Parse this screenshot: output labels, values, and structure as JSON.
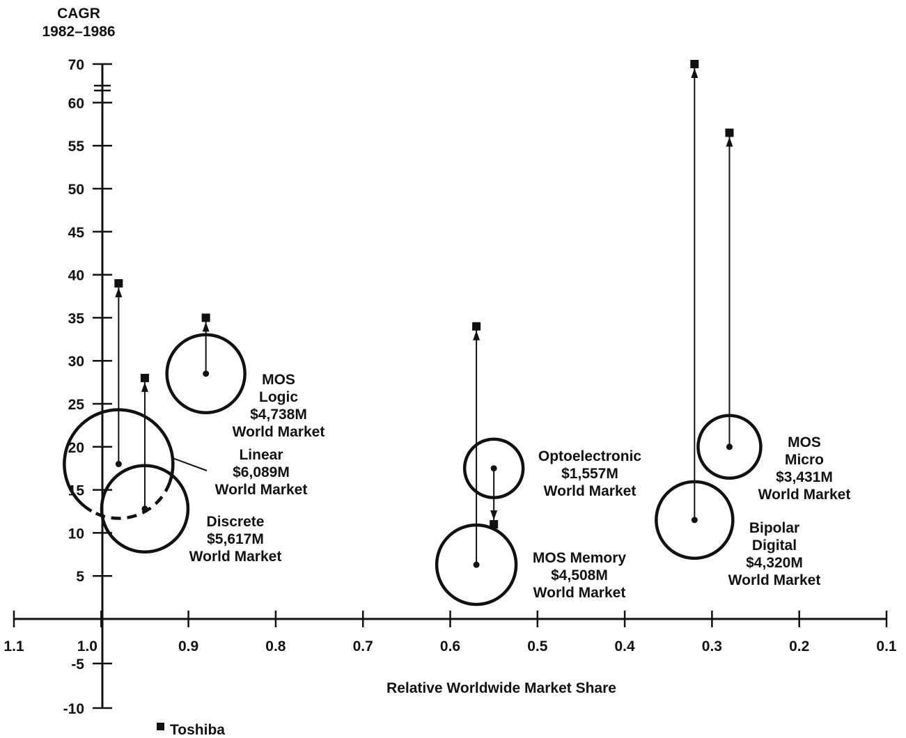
{
  "chart_data": {
    "type": "scatter",
    "title": "",
    "y_axis_title": [
      "CAGR",
      "1982–1986"
    ],
    "xlabel": "Relative Worldwide Market Share",
    "x_ticks": [
      "1.1",
      "1.0",
      "0.9",
      "0.8",
      "0.7",
      "0.6",
      "0.5",
      "0.4",
      "0.3",
      "0.2",
      "0.1"
    ],
    "x_tick_values": [
      1.1,
      1.0,
      0.9,
      0.8,
      0.7,
      0.6,
      0.5,
      0.4,
      0.3,
      0.2,
      0.1
    ],
    "xlim": [
      1.1,
      0.1
    ],
    "x_reversed": true,
    "y_ticks": [
      "70",
      "60",
      "55",
      "50",
      "45",
      "40",
      "35",
      "30",
      "25",
      "20",
      "15",
      "10",
      "5",
      "-5",
      "-10"
    ],
    "y_tick_values": [
      70,
      60,
      55,
      50,
      45,
      40,
      35,
      30,
      25,
      20,
      15,
      10,
      5,
      -5,
      -10
    ],
    "y_axis_break": [
      60,
      70
    ],
    "grid": false,
    "legend": {
      "marker": "square",
      "label": "Toshiba",
      "placement": "bottom-left"
    },
    "points": [
      {
        "name": "Linear",
        "market": "$6,089M",
        "label_suffix": "World Market",
        "x": 0.98,
        "y": 18,
        "toshiba_y": 39,
        "dashed_lower_arc": true
      },
      {
        "name": "Discrete",
        "market": "$5,617M",
        "label_suffix": "World Market",
        "x": 0.95,
        "y": 12.8,
        "toshiba_y": 28
      },
      {
        "name": "MOS Logic",
        "market": "$4,738M",
        "label_suffix": "World Market",
        "x": 0.88,
        "y": 28.5,
        "toshiba_y": 35
      },
      {
        "name": "MOS Memory",
        "market": "$4,508M",
        "label_suffix": "World Market",
        "x": 0.57,
        "y": 6.3,
        "toshiba_y": 34
      },
      {
        "name": "Optoelectronic",
        "market": "$1,557M",
        "label_suffix": "World Market",
        "x": 0.55,
        "y": 17.5,
        "toshiba_y": 11
      },
      {
        "name": "Bipolar Digital",
        "market": "$4,320M",
        "label_suffix": "World Market",
        "x": 0.32,
        "y": 11.5,
        "toshiba_y": 70
      },
      {
        "name": "MOS Micro",
        "market": "$3,431M",
        "label_suffix": "World Market",
        "x": 0.28,
        "y": 20,
        "toshiba_y": 56.5
      }
    ],
    "label_lines": {
      "Linear": [
        "Linear",
        "$6,089M",
        "World Market"
      ],
      "Discrete": [
        "Discrete",
        "$5,617M",
        "World Market"
      ],
      "MOS Logic": [
        "MOS",
        "Logic",
        "$4,738M",
        "World Market"
      ],
      "MOS Memory": [
        "MOS Memory",
        "$4,508M",
        "World Market"
      ],
      "Optoelectronic": [
        "Optoelectronic",
        "$1,557M",
        "World Market"
      ],
      "Bipolar Digital": [
        "Bipolar",
        "Digital",
        "$4,320M",
        "World Market"
      ],
      "MOS Micro": [
        "MOS",
        "Micro",
        "$3,431M",
        "World Market"
      ]
    }
  }
}
